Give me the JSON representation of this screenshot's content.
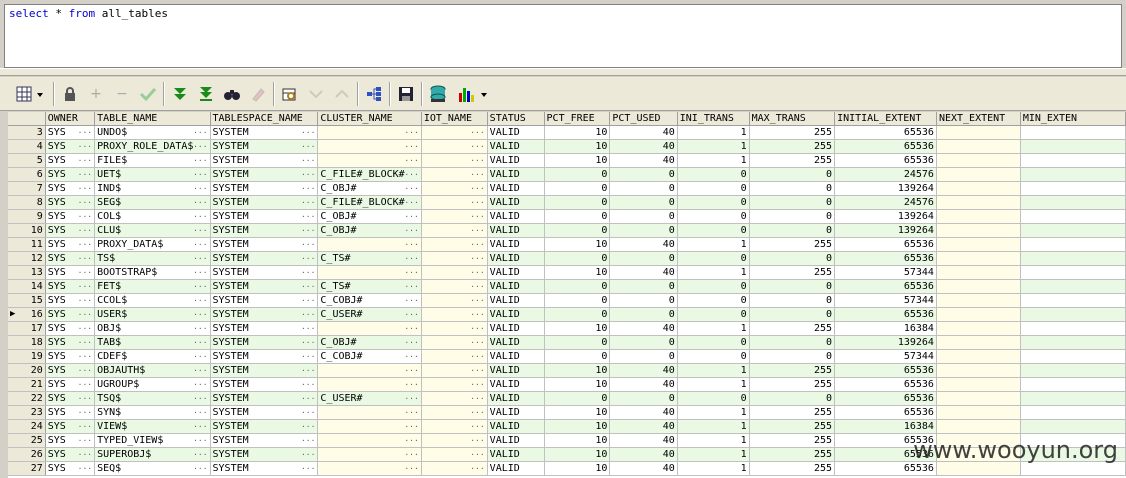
{
  "editor": {
    "sql_keyword_select": "select",
    "sql_star": "*",
    "sql_keyword_from": "from",
    "sql_table": "all_tables"
  },
  "toolbar": {
    "icons": [
      "grid-view-icon",
      "lock-icon",
      "add-row-icon",
      "delete-row-icon",
      "post-edit-icon",
      "fetch-next-icon",
      "fetch-last-icon",
      "find-icon",
      "clear-icon",
      "query-by-example-icon",
      "sort-down-icon",
      "sort-up-icon",
      "tree-icon",
      "save-icon",
      "export-icon",
      "chart-icon"
    ]
  },
  "columns": [
    "OWNER",
    "TABLE_NAME",
    "TABLESPACE_NAME",
    "CLUSTER_NAME",
    "IOT_NAME",
    "STATUS",
    "PCT_FREE",
    "PCT_USED",
    "INI_TRANS",
    "MAX_TRANS",
    "INITIAL_EXTENT",
    "NEXT_EXTENT",
    "MIN_EXTEN"
  ],
  "current_row": 16,
  "rows": [
    {
      "n": "3",
      "owner": "SYS",
      "table": "UNDO$",
      "ts": "SYSTEM",
      "cluster": "",
      "iot": "",
      "status": "VALID",
      "pf": "10",
      "pu": "40",
      "it": "1",
      "mt": "255",
      "ie": "65536"
    },
    {
      "n": "4",
      "owner": "SYS",
      "table": "PROXY_ROLE_DATA$",
      "ts": "SYSTEM",
      "cluster": "",
      "iot": "",
      "status": "VALID",
      "pf": "10",
      "pu": "40",
      "it": "1",
      "mt": "255",
      "ie": "65536"
    },
    {
      "n": "5",
      "owner": "SYS",
      "table": "FILE$",
      "ts": "SYSTEM",
      "cluster": "",
      "iot": "",
      "status": "VALID",
      "pf": "10",
      "pu": "40",
      "it": "1",
      "mt": "255",
      "ie": "65536"
    },
    {
      "n": "6",
      "owner": "SYS",
      "table": "UET$",
      "ts": "SYSTEM",
      "cluster": "C_FILE#_BLOCK#",
      "iot": "",
      "status": "VALID",
      "pf": "0",
      "pu": "0",
      "it": "0",
      "mt": "0",
      "ie": "24576"
    },
    {
      "n": "7",
      "owner": "SYS",
      "table": "IND$",
      "ts": "SYSTEM",
      "cluster": "C_OBJ#",
      "iot": "",
      "status": "VALID",
      "pf": "0",
      "pu": "0",
      "it": "0",
      "mt": "0",
      "ie": "139264"
    },
    {
      "n": "8",
      "owner": "SYS",
      "table": "SEG$",
      "ts": "SYSTEM",
      "cluster": "C_FILE#_BLOCK#",
      "iot": "",
      "status": "VALID",
      "pf": "0",
      "pu": "0",
      "it": "0",
      "mt": "0",
      "ie": "24576"
    },
    {
      "n": "9",
      "owner": "SYS",
      "table": "COL$",
      "ts": "SYSTEM",
      "cluster": "C_OBJ#",
      "iot": "",
      "status": "VALID",
      "pf": "0",
      "pu": "0",
      "it": "0",
      "mt": "0",
      "ie": "139264"
    },
    {
      "n": "10",
      "owner": "SYS",
      "table": "CLU$",
      "ts": "SYSTEM",
      "cluster": "C_OBJ#",
      "iot": "",
      "status": "VALID",
      "pf": "0",
      "pu": "0",
      "it": "0",
      "mt": "0",
      "ie": "139264"
    },
    {
      "n": "11",
      "owner": "SYS",
      "table": "PROXY_DATA$",
      "ts": "SYSTEM",
      "cluster": "",
      "iot": "",
      "status": "VALID",
      "pf": "10",
      "pu": "40",
      "it": "1",
      "mt": "255",
      "ie": "65536"
    },
    {
      "n": "12",
      "owner": "SYS",
      "table": "TS$",
      "ts": "SYSTEM",
      "cluster": "C_TS#",
      "iot": "",
      "status": "VALID",
      "pf": "0",
      "pu": "0",
      "it": "0",
      "mt": "0",
      "ie": "65536"
    },
    {
      "n": "13",
      "owner": "SYS",
      "table": "BOOTSTRAP$",
      "ts": "SYSTEM",
      "cluster": "",
      "iot": "",
      "status": "VALID",
      "pf": "10",
      "pu": "40",
      "it": "1",
      "mt": "255",
      "ie": "57344"
    },
    {
      "n": "14",
      "owner": "SYS",
      "table": "FET$",
      "ts": "SYSTEM",
      "cluster": "C_TS#",
      "iot": "",
      "status": "VALID",
      "pf": "0",
      "pu": "0",
      "it": "0",
      "mt": "0",
      "ie": "65536"
    },
    {
      "n": "15",
      "owner": "SYS",
      "table": "CCOL$",
      "ts": "SYSTEM",
      "cluster": "C_COBJ#",
      "iot": "",
      "status": "VALID",
      "pf": "0",
      "pu": "0",
      "it": "0",
      "mt": "0",
      "ie": "57344"
    },
    {
      "n": "16",
      "owner": "SYS",
      "table": "USER$",
      "ts": "SYSTEM",
      "cluster": "C_USER#",
      "iot": "",
      "status": "VALID",
      "pf": "0",
      "pu": "0",
      "it": "0",
      "mt": "0",
      "ie": "65536"
    },
    {
      "n": "17",
      "owner": "SYS",
      "table": "OBJ$",
      "ts": "SYSTEM",
      "cluster": "",
      "iot": "",
      "status": "VALID",
      "pf": "10",
      "pu": "40",
      "it": "1",
      "mt": "255",
      "ie": "16384"
    },
    {
      "n": "18",
      "owner": "SYS",
      "table": "TAB$",
      "ts": "SYSTEM",
      "cluster": "C_OBJ#",
      "iot": "",
      "status": "VALID",
      "pf": "0",
      "pu": "0",
      "it": "0",
      "mt": "0",
      "ie": "139264"
    },
    {
      "n": "19",
      "owner": "SYS",
      "table": "CDEF$",
      "ts": "SYSTEM",
      "cluster": "C_COBJ#",
      "iot": "",
      "status": "VALID",
      "pf": "0",
      "pu": "0",
      "it": "0",
      "mt": "0",
      "ie": "57344"
    },
    {
      "n": "20",
      "owner": "SYS",
      "table": "OBJAUTH$",
      "ts": "SYSTEM",
      "cluster": "",
      "iot": "",
      "status": "VALID",
      "pf": "10",
      "pu": "40",
      "it": "1",
      "mt": "255",
      "ie": "65536"
    },
    {
      "n": "21",
      "owner": "SYS",
      "table": "UGROUP$",
      "ts": "SYSTEM",
      "cluster": "",
      "iot": "",
      "status": "VALID",
      "pf": "10",
      "pu": "40",
      "it": "1",
      "mt": "255",
      "ie": "65536"
    },
    {
      "n": "22",
      "owner": "SYS",
      "table": "TSQ$",
      "ts": "SYSTEM",
      "cluster": "C_USER#",
      "iot": "",
      "status": "VALID",
      "pf": "0",
      "pu": "0",
      "it": "0",
      "mt": "0",
      "ie": "65536"
    },
    {
      "n": "23",
      "owner": "SYS",
      "table": "SYN$",
      "ts": "SYSTEM",
      "cluster": "",
      "iot": "",
      "status": "VALID",
      "pf": "10",
      "pu": "40",
      "it": "1",
      "mt": "255",
      "ie": "65536"
    },
    {
      "n": "24",
      "owner": "SYS",
      "table": "VIEW$",
      "ts": "SYSTEM",
      "cluster": "",
      "iot": "",
      "status": "VALID",
      "pf": "10",
      "pu": "40",
      "it": "1",
      "mt": "255",
      "ie": "16384"
    },
    {
      "n": "25",
      "owner": "SYS",
      "table": "TYPED_VIEW$",
      "ts": "SYSTEM",
      "cluster": "",
      "iot": "",
      "status": "VALID",
      "pf": "10",
      "pu": "40",
      "it": "1",
      "mt": "255",
      "ie": "65536"
    },
    {
      "n": "26",
      "owner": "SYS",
      "table": "SUPEROBJ$",
      "ts": "SYSTEM",
      "cluster": "",
      "iot": "",
      "status": "VALID",
      "pf": "10",
      "pu": "40",
      "it": "1",
      "mt": "255",
      "ie": "65536"
    },
    {
      "n": "27",
      "owner": "SYS",
      "table": "SEQ$",
      "ts": "SYSTEM",
      "cluster": "",
      "iot": "",
      "status": "VALID",
      "pf": "10",
      "pu": "40",
      "it": "1",
      "mt": "255",
      "ie": "65536"
    }
  ],
  "watermark": "www.wooyun.org"
}
